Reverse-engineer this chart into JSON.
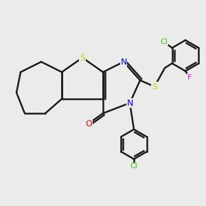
{
  "background_color": "#ebebeb",
  "bond_color": "#1a1a1a",
  "S_color": "#cccc00",
  "N_color": "#0000ee",
  "O_color": "#ff0000",
  "F_color": "#ff00ff",
  "Cl_color": "#33cc00",
  "line_width": 1.8,
  "figsize": [
    3.0,
    3.0
  ],
  "dpi": 100,
  "xlim": [
    0,
    10
  ],
  "ylim": [
    0,
    10
  ]
}
